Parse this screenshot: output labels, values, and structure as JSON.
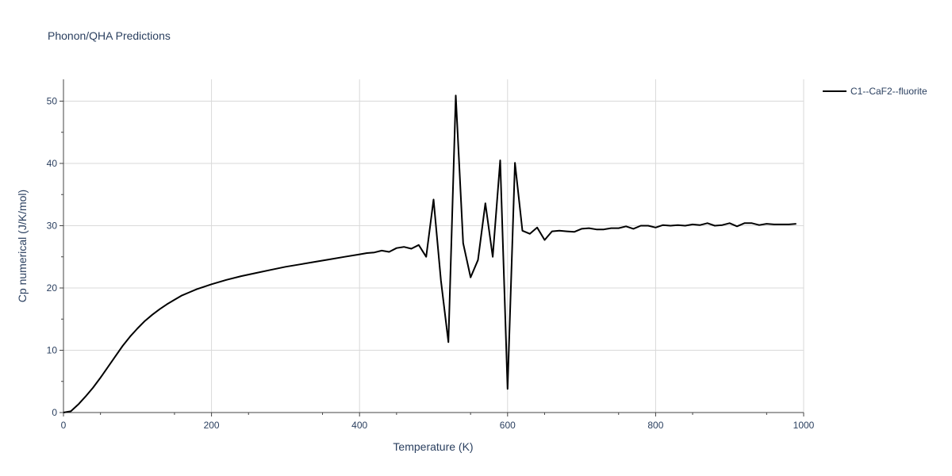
{
  "chart_data": {
    "type": "line",
    "title": "Phonon/QHA Predictions",
    "xlabel": "Temperature (K)",
    "ylabel": "Cp numerical (J/K/mol)",
    "xlim": [
      0,
      1000
    ],
    "ylim": [
      0,
      53.5
    ],
    "xticks": [
      0,
      200,
      400,
      600,
      800,
      1000
    ],
    "yticks": [
      0,
      10,
      20,
      30,
      40,
      50
    ],
    "grid": true,
    "legend_position": "top-right outside",
    "series": [
      {
        "name": "C1--CaF2--fluorite",
        "color": "#000000",
        "x": [
          0,
          10,
          20,
          30,
          40,
          50,
          60,
          70,
          80,
          90,
          100,
          110,
          120,
          130,
          140,
          150,
          160,
          170,
          180,
          190,
          200,
          220,
          240,
          260,
          280,
          300,
          320,
          340,
          360,
          380,
          400,
          410,
          420,
          430,
          440,
          450,
          460,
          470,
          480,
          490,
          500,
          510,
          520,
          530,
          540,
          550,
          560,
          570,
          580,
          590,
          600,
          610,
          620,
          630,
          640,
          650,
          660,
          670,
          680,
          690,
          700,
          710,
          720,
          730,
          740,
          750,
          760,
          770,
          780,
          790,
          800,
          810,
          820,
          830,
          840,
          850,
          860,
          870,
          880,
          890,
          900,
          910,
          920,
          930,
          940,
          950,
          960,
          970,
          980,
          990
        ],
        "y": [
          0,
          0.2,
          1.3,
          2.6,
          4.0,
          5.6,
          7.3,
          9.0,
          10.7,
          12.2,
          13.5,
          14.7,
          15.7,
          16.6,
          17.4,
          18.1,
          18.8,
          19.3,
          19.8,
          20.2,
          20.6,
          21.3,
          21.9,
          22.4,
          22.9,
          23.4,
          23.8,
          24.2,
          24.6,
          25.0,
          25.4,
          25.6,
          25.7,
          26.0,
          25.8,
          26.4,
          26.6,
          26.3,
          26.9,
          25.0,
          34.2,
          21.2,
          11.3,
          50.9,
          27.2,
          21.7,
          24.5,
          33.6,
          25.0,
          40.5,
          3.8,
          40.1,
          29.2,
          28.7,
          29.7,
          27.7,
          29.1,
          29.2,
          29.1,
          29.0,
          29.5,
          29.6,
          29.4,
          29.4,
          29.6,
          29.6,
          29.9,
          29.5,
          30.0,
          30.0,
          29.7,
          30.1,
          30.0,
          30.1,
          30.0,
          30.2,
          30.1,
          30.4,
          30.0,
          30.1,
          30.4,
          29.9,
          30.4,
          30.4,
          30.1,
          30.3,
          30.2,
          30.2,
          30.2,
          30.3
        ]
      }
    ]
  }
}
